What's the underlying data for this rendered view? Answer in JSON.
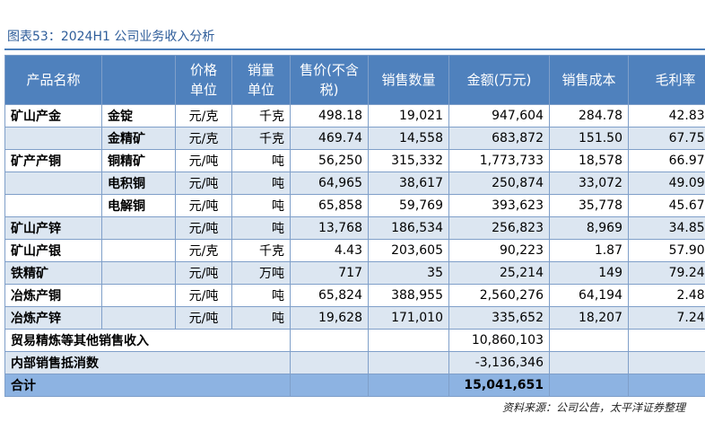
{
  "title": "图表53：2024H1 公司业务收入分析",
  "table": {
    "header": [
      "产品名称",
      null,
      "价格单位",
      "销量单位",
      "售价(不含税)",
      "销售数量",
      "金额(万元)",
      "销售成本",
      "毛利率"
    ],
    "rows": [
      [
        "矿山产金",
        "金锭",
        "元/克",
        "千克",
        "498.18",
        "19,021",
        "947,604",
        "284.78",
        "42.83%"
      ],
      [
        null,
        "金精矿",
        "元/克",
        "千克",
        "469.74",
        "14,558",
        "683,872",
        "151.50",
        "67.75%"
      ],
      [
        "矿产产铜",
        "铜精矿",
        "元/吨",
        "吨",
        "56,250",
        "315,332",
        "1,773,733",
        "18,578",
        "66.97%"
      ],
      [
        null,
        "电积铜",
        "元/吨",
        "吨",
        "64,965",
        "38,617",
        "250,874",
        "33,072",
        "49.09%"
      ],
      [
        null,
        "电解铜",
        "元/吨",
        "吨",
        "65,858",
        "59,769",
        "393,623",
        "35,778",
        "45.67%"
      ],
      [
        "矿山产锌",
        null,
        "元/吨",
        "吨",
        "13,768",
        "186,534",
        "256,823",
        "8,969",
        "34.85%"
      ],
      [
        "矿山产银",
        null,
        "元/克",
        "千克",
        "4.43",
        "203,605",
        "90,223",
        "1.87",
        "57.90%"
      ],
      [
        "铁精矿",
        null,
        "元/吨",
        "万吨",
        "717",
        "35",
        "25,214",
        "149",
        "79.24%"
      ],
      [
        "冶炼产铜",
        null,
        "元/吨",
        "吨",
        "65,824",
        "388,955",
        "2,560,276",
        "64,194",
        "2.48%"
      ],
      [
        "冶炼产锌",
        null,
        "元/吨",
        "吨",
        "19,628",
        "171,010",
        "335,652",
        "18,207",
        "7.24%"
      ],
      [
        "贸易精炼等其他销售收入",
        null,
        null,
        "10,860,103",
        null,
        null
      ],
      [
        "内部销售抵消数",
        null,
        null,
        "-3,136,346",
        null,
        null
      ],
      [
        "合计",
        null,
        null,
        "15,041,651",
        null,
        null
      ]
    ]
  },
  "source": "资料来源：公司公告，太平洋证券整理"
}
